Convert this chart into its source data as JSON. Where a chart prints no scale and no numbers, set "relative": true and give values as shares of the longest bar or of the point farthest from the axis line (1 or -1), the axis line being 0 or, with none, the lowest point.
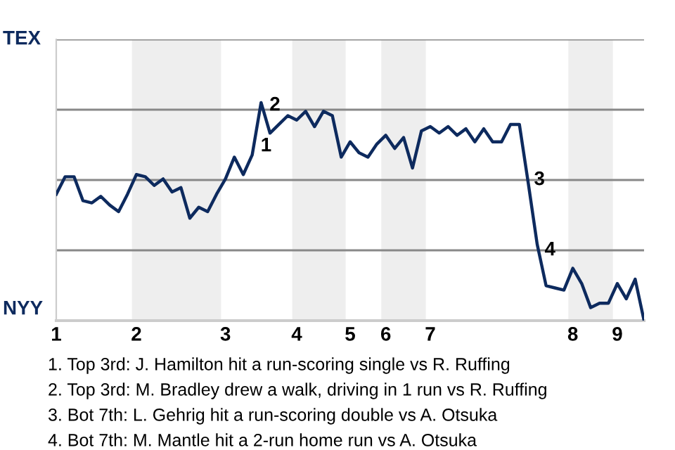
{
  "chart_data": {
    "type": "line",
    "relative": true,
    "categories": [
      "1",
      null,
      null,
      null,
      null,
      null,
      null,
      null,
      null,
      "2",
      null,
      null,
      null,
      null,
      null,
      null,
      null,
      null,
      null,
      "3",
      null,
      null,
      null,
      null,
      null,
      null,
      null,
      "4",
      null,
      null,
      null,
      null,
      null,
      "5",
      null,
      null,
      null,
      "6",
      null,
      null,
      null,
      null,
      "7",
      null,
      null,
      null,
      null,
      null,
      null,
      null,
      null,
      null,
      null,
      null,
      null,
      null,
      null,
      null,
      "8",
      null,
      null,
      null,
      null,
      "9",
      null,
      null,
      null
    ],
    "series": [
      {
        "color": "#0d2a5e",
        "values": [
          0.58,
          0.66,
          0.66,
          0.55,
          0.54,
          0.57,
          0.53,
          0.5,
          0.58,
          0.67,
          0.66,
          0.62,
          0.65,
          0.59,
          0.61,
          0.47,
          0.52,
          0.5,
          0.58,
          0.65,
          0.75,
          0.67,
          0.76,
          1,
          0.86,
          0.9,
          0.94,
          0.92,
          0.96,
          0.89,
          0.96,
          0.94,
          0.75,
          0.82,
          0.77,
          0.75,
          0.81,
          0.85,
          0.79,
          0.84,
          0.7,
          0.87,
          0.89,
          0.86,
          0.89,
          0.85,
          0.88,
          0.82,
          0.88,
          0.82,
          0.82,
          0.9,
          0.9,
          0.63,
          0.35,
          0.16,
          0.15,
          0.14,
          0.24,
          0.17,
          0.06,
          0.08,
          0.08,
          0.17,
          0.1,
          0.19,
          0
        ]
      }
    ],
    "grid": "y",
    "marker": "none",
    "line_style": "solid",
    "annotations": [
      "TEX",
      "NYY",
      "1",
      "2",
      "3",
      "4",
      "1. Top 3rd: J. Hamilton hit a run-scoring single vs R. Ruffing",
      "2. Top 3rd: M. Bradley drew a walk, driving in 1 run vs R. Ruffing",
      "3. Bot 7th: L. Gehrig hit a run-scoring double vs A. Otsuka",
      "4. Bot 7th: M. Mantle hit a 2-run home run vs A. Otsuka"
    ]
  }
}
